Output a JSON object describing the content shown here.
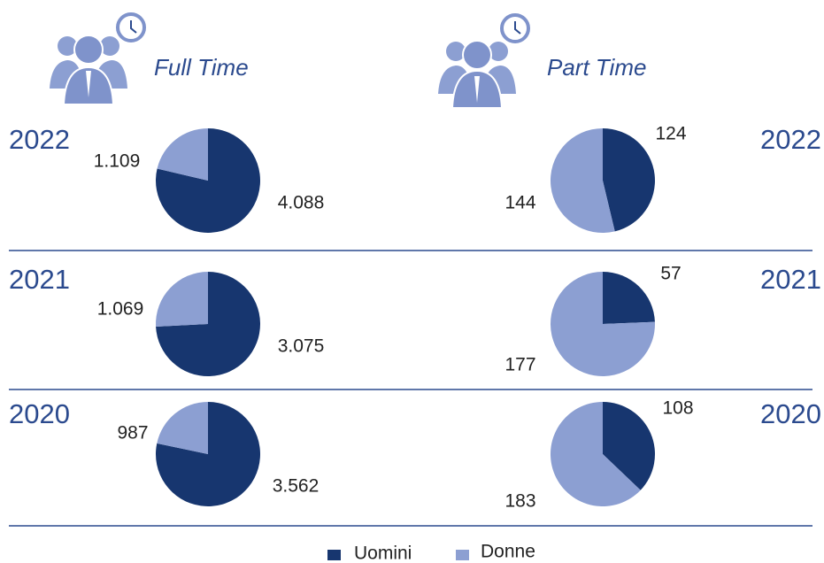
{
  "header": [
    "Full Time",
    "Part Time"
  ],
  "chart_data": [
    {
      "type": "pie",
      "title": "2022",
      "categories": [
        "Uomini",
        "Donne"
      ],
      "values": [
        4088,
        1109
      ],
      "value_labels": [
        "4.088",
        "1.109"
      ],
      "colors": [
        "#17366f",
        "#8c9fd2"
      ]
    },
    {
      "type": "pie",
      "title": "2021",
      "categories": [
        "Uomini",
        "Donne"
      ],
      "values": [
        3075,
        1069
      ],
      "value_labels": [
        "3.075",
        "1.069"
      ],
      "colors": [
        "#17366f",
        "#8c9fd2"
      ]
    },
    {
      "type": "pie",
      "title": "2020",
      "categories": [
        "Uomini",
        "Donne"
      ],
      "values": [
        3562,
        987
      ],
      "value_labels": [
        "3.562",
        "987"
      ],
      "colors": [
        "#17366f",
        "#8c9fd2"
      ]
    },
    {
      "type": "pie",
      "title": "2022",
      "categories": [
        "Uomini",
        "Donne"
      ],
      "values": [
        124,
        144
      ],
      "colors": [
        "#17366f",
        "#8c9fd2"
      ]
    },
    {
      "type": "pie",
      "title": "2021",
      "categories": [
        "Uomini",
        "Donne"
      ],
      "values": [
        57,
        177
      ],
      "colors": [
        "#17366f",
        "#8c9fd2"
      ]
    },
    {
      "type": "pie",
      "title": "2020",
      "categories": [
        "Uomini",
        "Donne"
      ],
      "values": [
        108,
        183
      ],
      "colors": [
        "#17366f",
        "#8c9fd2"
      ]
    }
  ]
}
